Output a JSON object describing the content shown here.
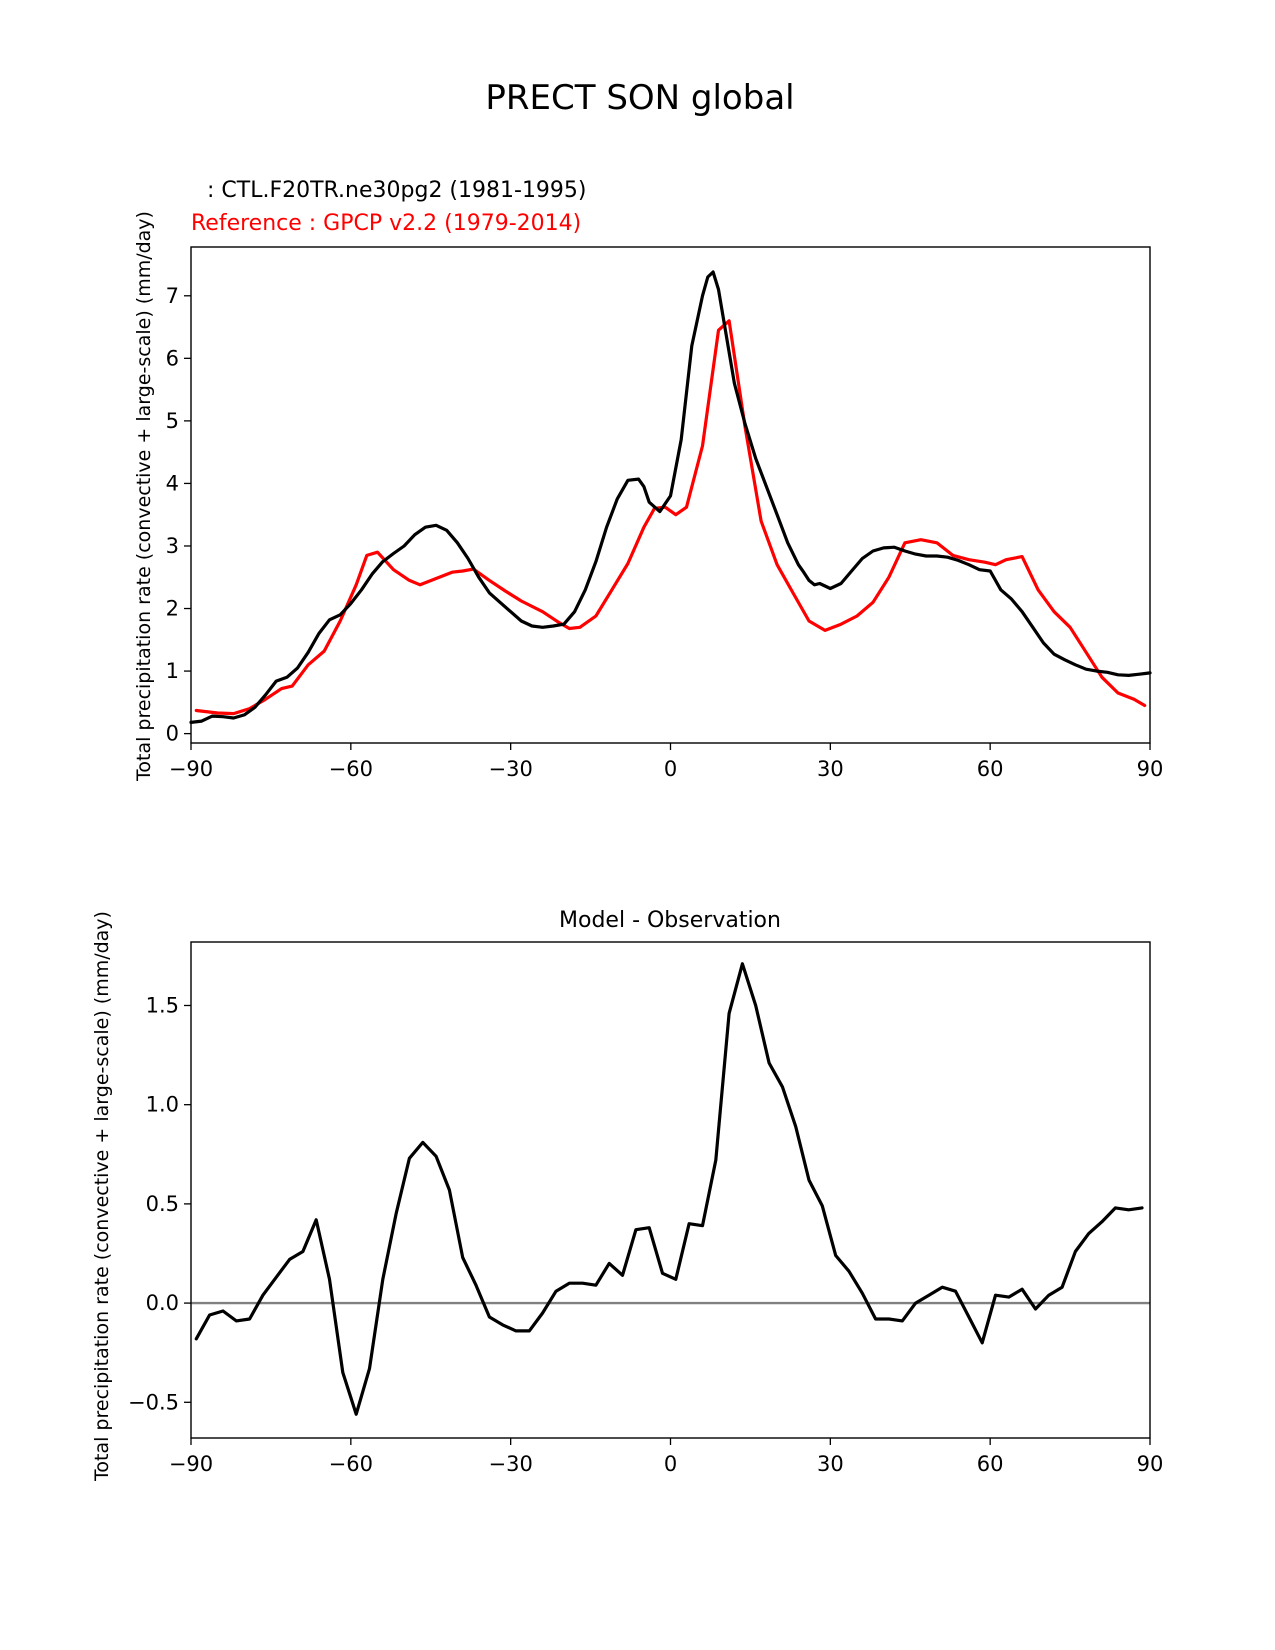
{
  "figure_title": "PRECT SON global",
  "colors": {
    "test": "#000000",
    "reference": "#ff0000",
    "zero_line": "#808080",
    "axes": "#000000"
  },
  "chart_data": [
    {
      "type": "line",
      "legend_test": ": CTL.F20TR.ne30pg2 (1981-1995)",
      "legend_reference": "Reference : GPCP v2.2 (1979-2014)",
      "xlabel": "",
      "ylabel": "Total precipitation rate (convective + large-scale) (mm/day)",
      "xlim": [
        -90,
        90
      ],
      "ylim": [
        -0.15,
        7.78
      ],
      "xticks": [
        -90,
        -60,
        -30,
        0,
        30,
        60,
        90
      ],
      "xtick_labels": [
        "−90",
        "−60",
        "−30",
        "0",
        "30",
        "60",
        "90"
      ],
      "yticks": [
        0,
        1,
        2,
        3,
        4,
        5,
        6,
        7
      ],
      "ytick_labels": [
        "0",
        "1",
        "2",
        "3",
        "4",
        "5",
        "6",
        "7"
      ],
      "series": [
        {
          "name": "CTL.F20TR.ne30pg2 (1981-1995)",
          "color": "#000000",
          "x": [
            -90,
            -88,
            -86,
            -84,
            -82,
            -80,
            -78,
            -76,
            -74,
            -72,
            -70,
            -68,
            -66,
            -64,
            -62,
            -60,
            -58,
            -56,
            -54,
            -52,
            -50,
            -48,
            -46,
            -44,
            -42,
            -40,
            -38,
            -36,
            -34,
            -32,
            -30,
            -28,
            -26,
            -24,
            -22,
            -20,
            -18,
            -16,
            -14,
            -12,
            -10,
            -8,
            -6,
            -5,
            -4,
            -2,
            0,
            2,
            4,
            6,
            7,
            8,
            9,
            10,
            12,
            14,
            16,
            18,
            20,
            22,
            24,
            25,
            26,
            27,
            28,
            30,
            32,
            34,
            36,
            38,
            40,
            42,
            44,
            46,
            48,
            50,
            52,
            54,
            56,
            58,
            60,
            62,
            64,
            66,
            68,
            70,
            72,
            74,
            76,
            78,
            80,
            82,
            84,
            86,
            88,
            90
          ],
          "values": [
            0.18,
            0.2,
            0.28,
            0.27,
            0.25,
            0.3,
            0.42,
            0.62,
            0.84,
            0.9,
            1.05,
            1.3,
            1.6,
            1.82,
            1.9,
            2.08,
            2.3,
            2.55,
            2.75,
            2.88,
            3.0,
            3.18,
            3.3,
            3.33,
            3.25,
            3.05,
            2.8,
            2.5,
            2.25,
            2.1,
            1.95,
            1.8,
            1.72,
            1.7,
            1.72,
            1.75,
            1.95,
            2.3,
            2.75,
            3.3,
            3.75,
            4.05,
            4.07,
            3.95,
            3.7,
            3.55,
            3.8,
            4.7,
            6.2,
            7.0,
            7.3,
            7.38,
            7.1,
            6.6,
            5.6,
            4.95,
            4.4,
            3.95,
            3.5,
            3.05,
            2.7,
            2.58,
            2.45,
            2.38,
            2.4,
            2.32,
            2.4,
            2.6,
            2.8,
            2.92,
            2.97,
            2.98,
            2.92,
            2.87,
            2.84,
            2.84,
            2.82,
            2.77,
            2.7,
            2.62,
            2.6,
            2.3,
            2.15,
            1.95,
            1.7,
            1.45,
            1.27,
            1.18,
            1.1,
            1.03,
            1.0,
            0.98,
            0.94,
            0.93,
            0.95,
            0.97
          ]
        },
        {
          "name": "Reference : GPCP v2.2 (1979-2014)",
          "color": "#ff0000",
          "x": [
            -89,
            -85,
            -82,
            -79,
            -76,
            -73,
            -71,
            -68,
            -65,
            -62,
            -59,
            -57,
            -55,
            -52,
            -49,
            -47,
            -44,
            -41,
            -39,
            -37,
            -34,
            -31,
            -28,
            -24,
            -21,
            -19,
            -17,
            -14,
            -11,
            -8,
            -5,
            -3,
            -1,
            1,
            3,
            6,
            9,
            11,
            14,
            17,
            20,
            23,
            26,
            29,
            32,
            35,
            38,
            41,
            44,
            47,
            50,
            53,
            56,
            59,
            61,
            63,
            66,
            69,
            72,
            75,
            78,
            81,
            84,
            87,
            89
          ],
          "values": [
            0.37,
            0.33,
            0.32,
            0.4,
            0.55,
            0.72,
            0.76,
            1.1,
            1.32,
            1.8,
            2.38,
            2.85,
            2.9,
            2.62,
            2.45,
            2.38,
            2.48,
            2.58,
            2.6,
            2.63,
            2.45,
            2.28,
            2.12,
            1.95,
            1.78,
            1.68,
            1.7,
            1.88,
            2.3,
            2.72,
            3.3,
            3.6,
            3.62,
            3.5,
            3.62,
            4.6,
            6.45,
            6.6,
            4.9,
            3.4,
            2.7,
            2.25,
            1.8,
            1.65,
            1.75,
            1.88,
            2.1,
            2.5,
            3.05,
            3.1,
            3.05,
            2.85,
            2.78,
            2.74,
            2.7,
            2.78,
            2.83,
            2.3,
            1.95,
            1.7,
            1.3,
            0.9,
            0.65,
            0.55,
            0.45
          ]
        }
      ]
    },
    {
      "type": "line",
      "title": "Model - Observation",
      "xlabel": "",
      "ylabel": "Total precipitation rate (convective + large-scale) (mm/day)",
      "xlim": [
        -90,
        90
      ],
      "ylim": [
        -0.68,
        1.82
      ],
      "xticks": [
        -90,
        -60,
        -30,
        0,
        30,
        60,
        90
      ],
      "xtick_labels": [
        "−90",
        "−60",
        "−30",
        "0",
        "30",
        "60",
        "90"
      ],
      "yticks": [
        -0.5,
        0.0,
        0.5,
        1.0,
        1.5
      ],
      "ytick_labels": [
        "−0.5",
        "0.0",
        "0.5",
        "1.0",
        "1.5"
      ],
      "reference_line": {
        "y": 0.0,
        "color": "#808080"
      },
      "series": [
        {
          "name": "Model - Observation",
          "color": "#000000",
          "x": [
            -89,
            -86.5,
            -84,
            -81.5,
            -79,
            -76.5,
            -74,
            -71.5,
            -69,
            -66.5,
            -64,
            -61.5,
            -59,
            -56.5,
            -54,
            -51.5,
            -49,
            -46.5,
            -44,
            -41.5,
            -39,
            -36.5,
            -34,
            -31.5,
            -29,
            -26.5,
            -24,
            -21.5,
            -19,
            -16.5,
            -14,
            -11.5,
            -9,
            -6.5,
            -4,
            -1.5,
            1,
            3.5,
            6,
            8.5,
            11,
            13.5,
            16,
            18.5,
            21,
            23.5,
            26,
            28.5,
            31,
            33.5,
            36,
            38.5,
            41,
            43.5,
            46,
            48.5,
            51,
            53.5,
            56,
            58.5,
            61,
            63.5,
            66,
            68.5,
            71,
            73.5,
            76,
            78.5,
            81,
            83.5,
            86,
            88.5
          ],
          "values": [
            -0.18,
            -0.06,
            -0.04,
            -0.09,
            -0.08,
            0.04,
            0.13,
            0.22,
            0.26,
            0.42,
            0.12,
            -0.35,
            -0.56,
            -0.33,
            0.12,
            0.45,
            0.73,
            0.81,
            0.74,
            0.57,
            0.23,
            0.09,
            -0.07,
            -0.11,
            -0.14,
            -0.14,
            -0.05,
            0.06,
            0.1,
            0.1,
            0.09,
            0.2,
            0.14,
            0.37,
            0.38,
            0.15,
            0.12,
            0.4,
            0.39,
            0.72,
            1.46,
            1.71,
            1.5,
            1.21,
            1.09,
            0.89,
            0.62,
            0.49,
            0.24,
            0.16,
            0.05,
            -0.08,
            -0.08,
            -0.09,
            0.0,
            0.04,
            0.08,
            0.06,
            -0.07,
            -0.2,
            0.04,
            0.03,
            0.07,
            -0.03,
            0.04,
            0.08,
            0.26,
            0.35,
            0.41,
            0.48,
            0.47,
            0.48
          ]
        }
      ]
    }
  ]
}
